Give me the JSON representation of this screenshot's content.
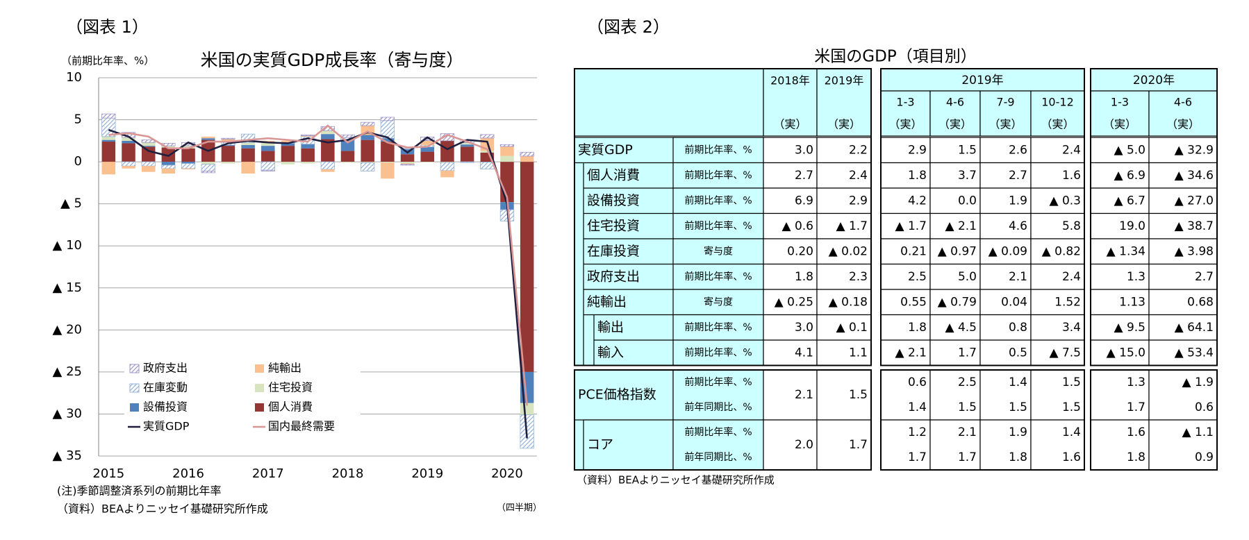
{
  "figure1_label": "（図表 1）",
  "figure2_label": "（図表 2）",
  "chart_data": {
    "type": "bar",
    "stacked": true,
    "title": "米国の実質GDP成長率（寄与度）",
    "y_label": "（前期比年率、%）",
    "x_label": "（四半期）",
    "notes": [
      "(注)季節調整済系列の前期比年率",
      "（資料）BEAよりニッセイ基礎研究所作成"
    ],
    "categories": [
      "2015",
      null,
      null,
      null,
      "2016",
      null,
      null,
      null,
      "2017",
      null,
      null,
      null,
      "2018",
      null,
      null,
      null,
      "2019",
      null,
      null,
      null,
      "2020",
      null
    ],
    "ylim": [
      -35,
      10
    ],
    "yticks": [
      10,
      5,
      0,
      {
        "value": -5,
        "label": "▲ 5"
      },
      {
        "value": -10,
        "label": "▲ 10"
      },
      {
        "value": -15,
        "label": "▲ 15"
      },
      {
        "value": -20,
        "label": "▲ 20"
      },
      {
        "value": -25,
        "label": "▲ 25"
      },
      {
        "value": -30,
        "label": "▲ 30"
      },
      {
        "value": -35,
        "label": "▲ 35"
      }
    ],
    "grid": true,
    "legend": "lower left",
    "series": [
      {
        "name": "個人消費",
        "type": "bar",
        "color": "#943634",
        "values": [
          2.4,
          2.2,
          1.8,
          1.7,
          1.6,
          2.6,
          1.9,
          1.6,
          1.3,
          1.9,
          1.6,
          2.7,
          1.3,
          2.6,
          2.4,
          0.9,
          1.2,
          2.5,
          1.8,
          1.1,
          -4.8,
          -25.0
        ]
      },
      {
        "name": "設備投資",
        "type": "bar",
        "color": "#4f81bd",
        "values": [
          0.2,
          0.3,
          0.1,
          -0.4,
          -0.2,
          0.2,
          0.1,
          0.4,
          0.6,
          0.3,
          0.5,
          0.6,
          1.3,
          0.6,
          0.4,
          0.6,
          0.57,
          0.0,
          0.26,
          -0.04,
          -0.9,
          -3.7
        ]
      },
      {
        "name": "住宅投資",
        "type": "bar",
        "color": "#d7e4bd",
        "values": [
          0.4,
          0.4,
          0.4,
          0.2,
          0.3,
          -0.3,
          -0.2,
          0.3,
          0.4,
          -0.3,
          -0.2,
          0.4,
          -0.1,
          -0.1,
          -0.1,
          -0.2,
          -0.06,
          -0.08,
          0.17,
          0.21,
          0.7,
          -1.4
        ]
      },
      {
        "name": "在庫変動",
        "type": "bar",
        "color": "#95b3d7",
        "pattern": "hatch",
        "values": [
          2.2,
          -0.5,
          -0.5,
          -0.4,
          -0.6,
          -0.8,
          0.3,
          1.0,
          -1.0,
          0.1,
          0.9,
          -0.9,
          0.3,
          -1.0,
          2.1,
          0.1,
          0.21,
          -0.97,
          -0.09,
          -0.82,
          -1.34,
          -3.98
        ]
      },
      {
        "name": "純輸出",
        "type": "bar",
        "color": "#fac090",
        "values": [
          -1.5,
          -0.3,
          -0.7,
          -0.6,
          -0.1,
          0.2,
          0.4,
          -1.4,
          0.2,
          0.2,
          0.1,
          -0.3,
          0.0,
          1.1,
          -1.9,
          -0.1,
          0.55,
          -0.79,
          0.04,
          1.52,
          1.13,
          0.68
        ]
      },
      {
        "name": "政府支出",
        "type": "bar",
        "color": "#9f97c9",
        "pattern": "hatch",
        "values": [
          0.5,
          0.6,
          0.3,
          0.3,
          0.4,
          -0.2,
          0.1,
          0.0,
          -0.1,
          0.0,
          0.1,
          0.5,
          0.3,
          0.4,
          0.4,
          -0.1,
          0.42,
          0.85,
          0.36,
          0.41,
          0.22,
          0.46
        ]
      },
      {
        "name": "実質GDP",
        "type": "line",
        "color": "#1f1f3f",
        "values": [
          3.8,
          3.0,
          1.3,
          0.7,
          2.3,
          1.3,
          2.2,
          2.5,
          2.3,
          2.2,
          2.8,
          2.3,
          2.6,
          3.5,
          2.9,
          1.1,
          2.9,
          1.5,
          2.6,
          2.4,
          -5.0,
          -32.9
        ]
      },
      {
        "name": "国内最終需要",
        "type": "line",
        "color": "#d99694",
        "values": [
          3.2,
          3.4,
          3.0,
          1.6,
          1.6,
          2.4,
          2.4,
          2.6,
          2.8,
          2.6,
          2.4,
          4.3,
          2.3,
          3.6,
          2.3,
          1.7,
          1.8,
          3.2,
          2.4,
          1.5,
          -4.2,
          -29.0
        ]
      }
    ]
  },
  "table": {
    "title": "米国のGDP（項目別）",
    "source": "（資料）BEAよりニッセイ基礎研究所作成",
    "annual_headers": [
      "2018年",
      "2019年"
    ],
    "quarter_groups": [
      {
        "year": "2019年",
        "quarters": [
          "1-3",
          "4-6",
          "7-9",
          "10-12"
        ]
      },
      {
        "year": "2020年",
        "quarters": [
          "1-3",
          "4-6"
        ]
      }
    ],
    "actual": "（実）",
    "rows": [
      {
        "name": "実質GDP",
        "unit": "前期比年率、%",
        "values": [
          "3.0",
          "2.2",
          "2.9",
          "1.5",
          "2.6",
          "2.4",
          "▲ 5.0",
          "▲ 32.9"
        ]
      },
      {
        "name": "個人消費",
        "unit": "前期比年率、%",
        "values": [
          "2.7",
          "2.4",
          "1.8",
          "3.7",
          "2.7",
          "1.6",
          "▲ 6.9",
          "▲ 34.6"
        ]
      },
      {
        "name": "設備投資",
        "unit": "前期比年率、%",
        "values": [
          "6.9",
          "2.9",
          "4.2",
          "0.0",
          "1.9",
          "▲ 0.3",
          "▲ 6.7",
          "▲ 27.0"
        ]
      },
      {
        "name": "住宅投資",
        "unit": "前期比年率、%",
        "values": [
          "▲ 0.6",
          "▲ 1.7",
          "▲ 1.7",
          "▲ 2.1",
          "4.6",
          "5.8",
          "19.0",
          "▲ 38.7"
        ]
      },
      {
        "name": "在庫投資",
        "unit": "寄与度",
        "values": [
          "0.20",
          "▲ 0.02",
          "0.21",
          "▲ 0.97",
          "▲ 0.09",
          "▲ 0.82",
          "▲ 1.34",
          "▲ 3.98"
        ]
      },
      {
        "name": "政府支出",
        "unit": "前期比年率、%",
        "values": [
          "1.8",
          "2.3",
          "2.5",
          "5.0",
          "2.1",
          "2.4",
          "1.3",
          "2.7"
        ]
      },
      {
        "name": "純輸出",
        "unit": "寄与度",
        "values": [
          "▲ 0.25",
          "▲ 0.18",
          "0.55",
          "▲ 0.79",
          "0.04",
          "1.52",
          "1.13",
          "0.68"
        ]
      },
      {
        "name": "輸出",
        "unit": "前期比年率、%",
        "values": [
          "3.0",
          "▲ 0.1",
          "1.8",
          "▲ 4.5",
          "0.8",
          "3.4",
          "▲ 9.5",
          "▲ 64.1"
        ]
      },
      {
        "name": "輸入",
        "unit": "前期比年率、%",
        "values": [
          "4.1",
          "1.1",
          "▲ 2.1",
          "1.7",
          "0.5",
          "▲ 7.5",
          "▲ 15.0",
          "▲ 53.4"
        ]
      }
    ],
    "price_rows": [
      {
        "name": "PCE価格指数",
        "annual": [
          "2.1",
          "1.5"
        ],
        "lines": [
          {
            "unit": "前期比年率、%",
            "values": [
              "0.6",
              "2.5",
              "1.4",
              "1.5",
              "1.3",
              "▲ 1.9"
            ]
          },
          {
            "unit": "前年同期比、%",
            "values": [
              "1.4",
              "1.5",
              "1.5",
              "1.5",
              "1.7",
              "0.6"
            ]
          }
        ]
      },
      {
        "name": "コア",
        "annual": [
          "2.0",
          "1.7"
        ],
        "lines": [
          {
            "unit": "前期比年率、%",
            "values": [
              "1.2",
              "2.1",
              "1.9",
              "1.4",
              "1.6",
              "▲ 1.1"
            ]
          },
          {
            "unit": "前年同期比、%",
            "values": [
              "1.7",
              "1.7",
              "1.8",
              "1.6",
              "1.8",
              "0.9"
            ]
          }
        ]
      }
    ]
  }
}
